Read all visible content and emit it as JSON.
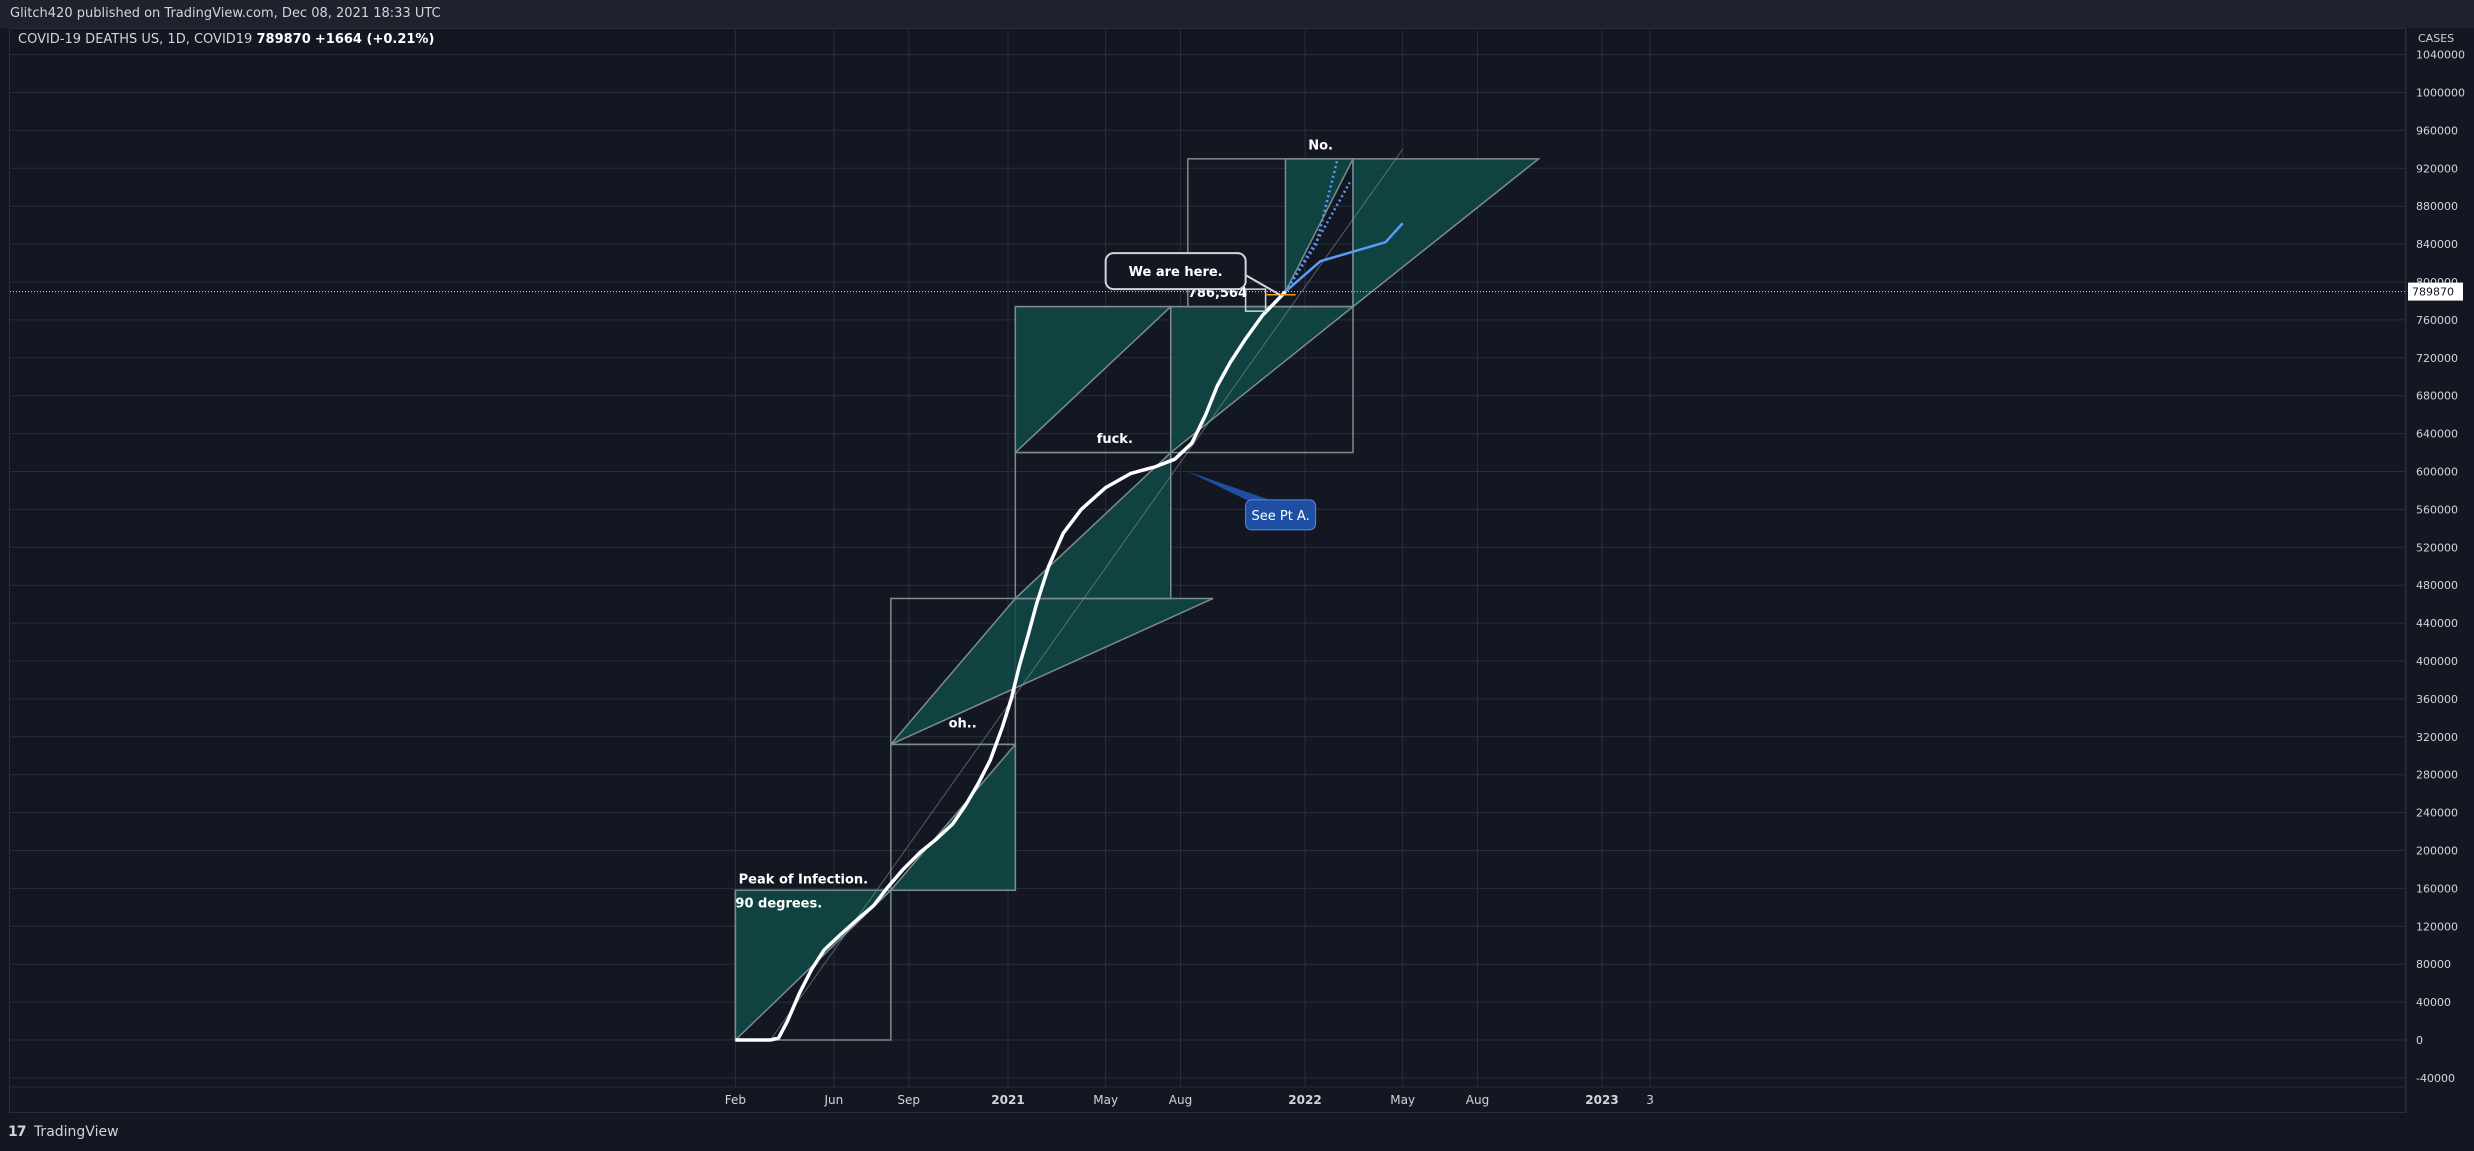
{
  "header": {
    "published": "Glitch420 published on TradingView.com, Dec 08, 2021 18:33 UTC"
  },
  "legend": {
    "symbol": "COVID-19 DEATHS US, 1D, COVID19",
    "last": "789870",
    "change": "+1664 (+0.21%)"
  },
  "footer": {
    "brand": "TradingView",
    "logo": "17"
  },
  "chart_data": {
    "type": "line",
    "title": "COVID-19 DEATHS US, 1D, COVID19",
    "ylabel": "CASES",
    "ylim": [
      -60000,
      1060000
    ],
    "y_ticks": [
      -40000,
      0,
      40000,
      80000,
      120000,
      160000,
      200000,
      240000,
      280000,
      320000,
      360000,
      400000,
      440000,
      480000,
      520000,
      560000,
      600000,
      640000,
      680000,
      720000,
      760000,
      800000,
      840000,
      880000,
      920000,
      960000,
      1000000,
      1040000
    ],
    "x_ticks": [
      {
        "label": "Feb",
        "date": "2020-02-01"
      },
      {
        "label": "Jun",
        "date": "2020-06-01"
      },
      {
        "label": "Sep",
        "date": "2020-09-01"
      },
      {
        "label": "2021",
        "date": "2021-01-01"
      },
      {
        "label": "May",
        "date": "2021-05-01"
      },
      {
        "label": "Aug",
        "date": "2021-08-01"
      },
      {
        "label": "2022",
        "date": "2022-01-01"
      },
      {
        "label": "May",
        "date": "2022-05-01"
      },
      {
        "label": "Aug",
        "date": "2022-08-01"
      },
      {
        "label": "2023",
        "date": "2023-01-01"
      },
      {
        "label": "3",
        "date": "2023-03-01"
      }
    ],
    "current_value": 789870,
    "current_label": "789870",
    "grid": true,
    "colors": {
      "background": "#131722",
      "grid": "#2a2e39",
      "line": "#ffffff",
      "box_fill": "#0f4a46",
      "box_stroke": "#7d8b8e",
      "projection": "#5b9cf6",
      "callout_blue": "#1e4fa3"
    },
    "series": [
      {
        "color": "#ffffff",
        "points": [
          [
            "2020-02-01",
            0
          ],
          [
            "2020-03-15",
            0
          ],
          [
            "2020-03-25",
            2000
          ],
          [
            "2020-04-05",
            20000
          ],
          [
            "2020-04-20",
            50000
          ],
          [
            "2020-05-05",
            75000
          ],
          [
            "2020-05-20",
            95000
          ],
          [
            "2020-06-10",
            112000
          ],
          [
            "2020-07-01",
            128000
          ],
          [
            "2020-07-20",
            142000
          ],
          [
            "2020-08-05",
            160000
          ],
          [
            "2020-08-25",
            180000
          ],
          [
            "2020-09-15",
            198000
          ],
          [
            "2020-10-05",
            212000
          ],
          [
            "2020-10-25",
            228000
          ],
          [
            "2020-11-10",
            248000
          ],
          [
            "2020-11-25",
            270000
          ],
          [
            "2020-12-10",
            295000
          ],
          [
            "2020-12-25",
            330000
          ],
          [
            "2021-01-05",
            360000
          ],
          [
            "2021-01-15",
            395000
          ],
          [
            "2021-01-25",
            425000
          ],
          [
            "2021-02-05",
            460000
          ],
          [
            "2021-02-20",
            500000
          ],
          [
            "2021-03-10",
            535000
          ],
          [
            "2021-04-01",
            560000
          ],
          [
            "2021-05-01",
            583000
          ],
          [
            "2021-06-01",
            598000
          ],
          [
            "2021-07-01",
            605000
          ],
          [
            "2021-07-25",
            613000
          ],
          [
            "2021-08-15",
            630000
          ],
          [
            "2021-09-01",
            660000
          ],
          [
            "2021-09-15",
            690000
          ],
          [
            "2021-10-01",
            715000
          ],
          [
            "2021-10-20",
            740000
          ],
          [
            "2021-11-10",
            765000
          ],
          [
            "2021-12-08",
            789870
          ]
        ]
      }
    ],
    "projections": [
      {
        "points": [
          [
            "2021-12-08",
            789870
          ],
          [
            "2022-01-15",
            840000
          ],
          [
            "2022-02-10",
            930000
          ]
        ],
        "dotted": true
      },
      {
        "points": [
          [
            "2021-12-08",
            789870
          ],
          [
            "2022-01-20",
            850000
          ],
          [
            "2022-02-25",
            905000
          ]
        ],
        "dotted": true
      },
      {
        "points": [
          [
            "2021-12-08",
            789870
          ],
          [
            "2022-01-20",
            822000
          ],
          [
            "2022-03-01",
            832000
          ],
          [
            "2022-04-10",
            842000
          ],
          [
            "2022-05-01",
            862000
          ]
        ],
        "dotted": false
      }
    ],
    "trend_line": [
      [
        "2020-03-15",
        0
      ],
      [
        "2022-05-01",
        940000
      ]
    ],
    "boxes": [
      {
        "square": [
          [
            "2020-02-01",
            0
          ],
          [
            "2020-08-10",
            158000
          ]
        ],
        "triangle": [
          [
            "2020-02-01",
            0
          ],
          [
            "2020-08-10",
            158000
          ],
          [
            "2020-02-01",
            158000
          ]
        ]
      },
      {
        "square": [
          [
            "2020-08-10",
            158000
          ],
          [
            "2021-01-10",
            312000
          ]
        ],
        "triangle": [
          [
            "2020-08-10",
            158000
          ],
          [
            "2021-01-10",
            312000
          ],
          [
            "2021-01-10",
            158000
          ]
        ]
      },
      {
        "square": [
          [
            "2020-08-10",
            312000
          ],
          [
            "2021-01-10",
            466000
          ]
        ],
        "triangle": [
          [
            "2020-08-10",
            312000
          ],
          [
            "2021-01-10",
            466000
          ],
          [
            "2021-09-10",
            466000
          ]
        ]
      },
      {
        "square": [
          [
            "2021-01-10",
            466000
          ],
          [
            "2021-07-20",
            620000
          ]
        ],
        "triangle": [
          [
            "2021-01-10",
            466000
          ],
          [
            "2021-07-20",
            620000
          ],
          [
            "2021-07-20",
            466000
          ]
        ]
      },
      {
        "square": [
          [
            "2021-01-10",
            620000
          ],
          [
            "2021-07-20",
            774000
          ]
        ],
        "triangle": [
          [
            "2021-01-10",
            620000
          ],
          [
            "2021-07-20",
            774000
          ],
          [
            "2021-01-10",
            774000
          ]
        ]
      },
      {
        "square": [
          [
            "2021-07-20",
            620000
          ],
          [
            "2022-03-01",
            774000
          ]
        ],
        "triangle": [
          [
            "2021-07-20",
            620000
          ],
          [
            "2022-03-01",
            774000
          ],
          [
            "2021-07-20",
            774000
          ]
        ]
      },
      {
        "square": [
          [
            "2021-08-10",
            774000
          ],
          [
            "2022-03-01",
            930000
          ]
        ],
        "triangle": [
          [
            "2021-12-08",
            789870
          ],
          [
            "2022-03-01",
            930000
          ],
          [
            "2021-12-08",
            930000
          ]
        ]
      },
      {
        "square": [
          [
            "2022-03-01",
            774000
          ],
          [
            "2022-03-01",
            930000
          ]
        ],
        "triangle": [
          [
            "2022-03-01",
            774000
          ],
          [
            "2022-03-01",
            930000
          ],
          [
            "2022-10-15",
            930000
          ]
        ]
      }
    ],
    "annotations": [
      {
        "text": "Peak of Infection.",
        "at": [
          "2020-02-05",
          165000
        ]
      },
      {
        "text": "90 degrees.",
        "at": [
          "2020-02-01",
          140000
        ]
      },
      {
        "text": "oh..",
        "at": [
          "2020-10-20",
          330000
        ]
      },
      {
        "text": "fuck.",
        "at": [
          "2021-04-20",
          630000
        ]
      },
      {
        "text": "No.",
        "at": [
          "2022-01-05",
          940000
        ]
      },
      {
        "text": "786,564",
        "at": [
          "2021-08-10",
          784000
        ]
      },
      {
        "text": "We are here.",
        "at": [
          "2021-05-01",
          822000
        ],
        "style": "callout"
      },
      {
        "text": "See Pt A.",
        "at": [
          "2021-10-20",
          570000
        ],
        "style": "callout-blue"
      }
    ]
  }
}
